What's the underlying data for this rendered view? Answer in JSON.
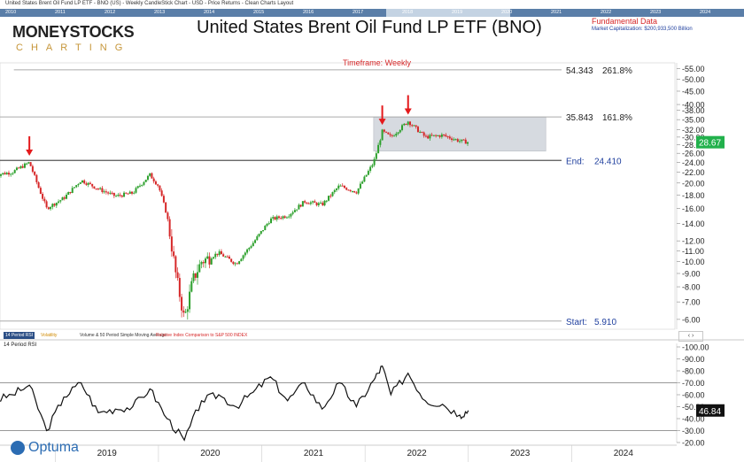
{
  "header": {
    "info_line": "United States Brent Oil Fund LP ETF - BNO (US) - Weekly CandleStick Chart - USD - Price Returns - Clean Charts Layout",
    "mini_years": [
      "2010",
      "2011",
      "2012",
      "2013",
      "2014",
      "2015",
      "2016",
      "2017",
      "2018",
      "2019",
      "2020",
      "2021",
      "2022",
      "2023",
      "2024"
    ]
  },
  "logo": {
    "main": "MONEYSTOCKS",
    "sub": "CHARTING"
  },
  "title": "United States Brent Oil Fund LP ETF (BNO)",
  "fundamental": {
    "title": "Fundamental Data",
    "value": "Market Capitalization: $200,933,500 Billion"
  },
  "timeframe": "Timeframe: Weekly",
  "indicator_tabs": [
    "14 Period RSI",
    "Volatility",
    "Volume & 50 Period Simple Moving Average",
    "Relative Index Comparison to S&P 500 INDEX"
  ],
  "nav_arrows": "‹  ›",
  "rsi_panel_title": "14 Period RSI",
  "branding": "Optuma",
  "colors": {
    "up": "#2ca02c",
    "down": "#d62728",
    "arrow": "#e41a1c",
    "zone": "#d6dae0",
    "price_tag": "#22b14c",
    "rsi_tag": "#111111",
    "level_text": "#1f3f9e",
    "rsi_line": "#111111"
  },
  "chart_data": [
    {
      "type": "candlestick",
      "title": "United States Brent Oil Fund LP ETF (BNO)",
      "y_scale": "log",
      "ylim": [
        5.5,
        56
      ],
      "x_ticks": [
        "2019",
        "2020",
        "2021",
        "2022",
        "2023",
        "2024"
      ],
      "y_ticks": [
        6,
        7,
        8,
        9,
        10,
        11,
        12,
        14,
        16,
        18,
        20,
        22,
        24,
        26,
        28,
        30,
        32,
        35,
        38,
        40,
        45,
        50,
        55
      ],
      "last_price": "28.67",
      "levels": [
        {
          "value": 54.343,
          "label": "54.343",
          "extra": "261.8%"
        },
        {
          "value": 35.843,
          "label": "35.843",
          "extra": "161.8%"
        },
        {
          "value": 24.41,
          "label": "End:",
          "extra": "24.410"
        },
        {
          "value": 5.91,
          "label": "Start:",
          "extra": "5.910"
        }
      ],
      "consolidation_zone": {
        "from": "2022-02",
        "to": "2023-10",
        "low": 26.5,
        "high": 35.8
      },
      "arrows": [
        "2018-10",
        "2022-03",
        "2022-06"
      ],
      "series": [
        {
          "x": "2018-06",
          "close": 21.5
        },
        {
          "x": "2018-08",
          "close": 22.0
        },
        {
          "x": "2018-10",
          "close": 24.0
        },
        {
          "x": "2018-11",
          "close": 19.5
        },
        {
          "x": "2018-12",
          "close": 16.0
        },
        {
          "x": "2019-02",
          "close": 17.5
        },
        {
          "x": "2019-04",
          "close": 20.5
        },
        {
          "x": "2019-06",
          "close": 19.0
        },
        {
          "x": "2019-08",
          "close": 17.8
        },
        {
          "x": "2019-10",
          "close": 18.3
        },
        {
          "x": "2019-12",
          "close": 21.5
        },
        {
          "x": "2020-01",
          "close": 19.5
        },
        {
          "x": "2020-02",
          "close": 15.0
        },
        {
          "x": "2020-03",
          "close": 9.0
        },
        {
          "x": "2020-04",
          "close": 6.0
        },
        {
          "x": "2020-05",
          "close": 8.5
        },
        {
          "x": "2020-06",
          "close": 10.0
        },
        {
          "x": "2020-08",
          "close": 10.8
        },
        {
          "x": "2020-10",
          "close": 9.8
        },
        {
          "x": "2020-12",
          "close": 11.8
        },
        {
          "x": "2021-02",
          "close": 14.5
        },
        {
          "x": "2021-04",
          "close": 15.0
        },
        {
          "x": "2021-06",
          "close": 17.0
        },
        {
          "x": "2021-08",
          "close": 16.5
        },
        {
          "x": "2021-10",
          "close": 19.5
        },
        {
          "x": "2021-12",
          "close": 18.5
        },
        {
          "x": "2022-02",
          "close": 24.0
        },
        {
          "x": "2022-03",
          "close": 31.5
        },
        {
          "x": "2022-04",
          "close": 30.0
        },
        {
          "x": "2022-06",
          "close": 34.5
        },
        {
          "x": "2022-08",
          "close": 30.0
        },
        {
          "x": "2022-10",
          "close": 30.5
        },
        {
          "x": "2022-12",
          "close": 29.0
        },
        {
          "x": "2023-01",
          "close": 28.67
        }
      ]
    },
    {
      "type": "line",
      "title": "14 Period RSI",
      "ylim": [
        20,
        100
      ],
      "y_ticks": [
        20,
        30,
        40,
        50,
        60,
        70,
        80,
        90,
        100
      ],
      "guide_lines": [
        70,
        30
      ],
      "last_value": "46.84",
      "series": [
        {
          "x": "2018-06",
          "y": 55
        },
        {
          "x": "2018-08",
          "y": 60
        },
        {
          "x": "2018-10",
          "y": 68
        },
        {
          "x": "2018-12",
          "y": 30
        },
        {
          "x": "2019-02",
          "y": 58
        },
        {
          "x": "2019-04",
          "y": 70
        },
        {
          "x": "2019-06",
          "y": 45
        },
        {
          "x": "2019-08",
          "y": 48
        },
        {
          "x": "2019-10",
          "y": 50
        },
        {
          "x": "2019-12",
          "y": 65
        },
        {
          "x": "2020-02",
          "y": 40
        },
        {
          "x": "2020-04",
          "y": 22
        },
        {
          "x": "2020-06",
          "y": 55
        },
        {
          "x": "2020-08",
          "y": 60
        },
        {
          "x": "2020-10",
          "y": 50
        },
        {
          "x": "2020-12",
          "y": 62
        },
        {
          "x": "2021-02",
          "y": 75
        },
        {
          "x": "2021-04",
          "y": 55
        },
        {
          "x": "2021-06",
          "y": 70
        },
        {
          "x": "2021-08",
          "y": 48
        },
        {
          "x": "2021-10",
          "y": 70
        },
        {
          "x": "2021-12",
          "y": 50
        },
        {
          "x": "2022-02",
          "y": 72
        },
        {
          "x": "2022-03",
          "y": 84
        },
        {
          "x": "2022-04",
          "y": 60
        },
        {
          "x": "2022-06",
          "y": 78
        },
        {
          "x": "2022-08",
          "y": 55
        },
        {
          "x": "2022-10",
          "y": 52
        },
        {
          "x": "2022-12",
          "y": 43
        },
        {
          "x": "2023-01",
          "y": 46.84
        }
      ]
    }
  ]
}
